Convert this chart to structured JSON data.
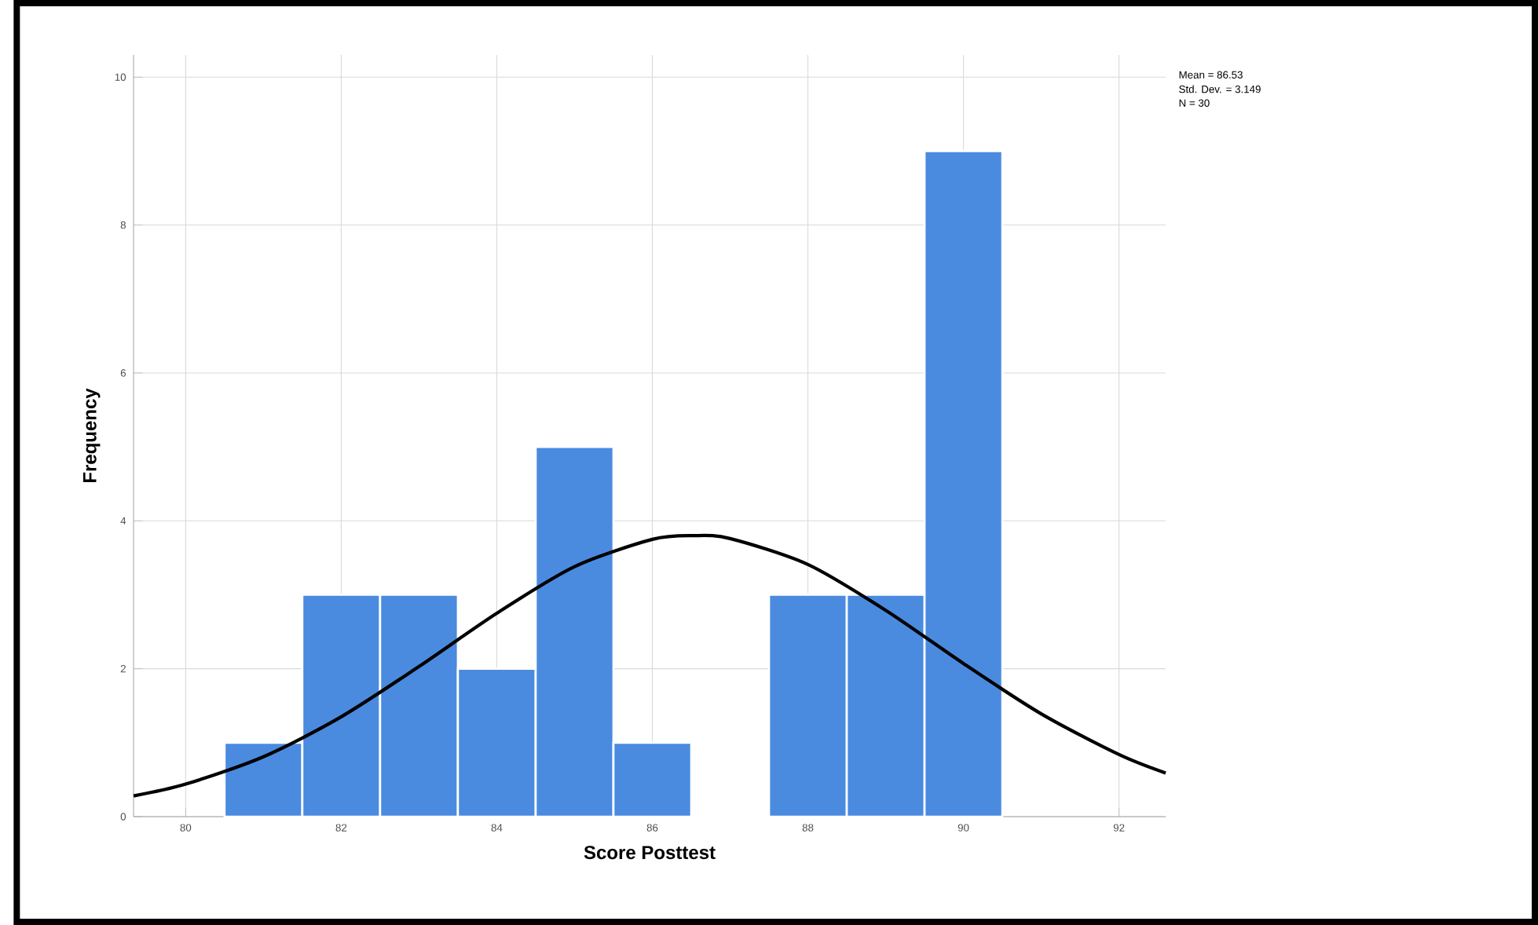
{
  "chart_data": {
    "type": "histogram",
    "xlabel": "Score Posttest",
    "ylabel": "Frequency",
    "series": [
      {
        "color": "#4a8be0",
        "bins": [
          80.5,
          81.5,
          82.5,
          83.5,
          84.5,
          85.5,
          86.5,
          87.5,
          88.5,
          89.5,
          90.5
        ],
        "values": [
          1,
          3,
          3,
          2,
          5,
          1,
          0,
          3,
          3,
          9
        ]
      },
      {
        "type": "line",
        "color": "#000000",
        "x": [
          79.33,
          80,
          81,
          82,
          83,
          84,
          85,
          86,
          86.53,
          87,
          88,
          89,
          90,
          91,
          92,
          92.6
        ],
        "values": [
          0.28,
          0.44,
          0.81,
          1.35,
          2.03,
          2.75,
          3.38,
          3.75,
          3.8,
          3.76,
          3.41,
          2.79,
          2.07,
          1.39,
          0.84,
          0.59
        ]
      }
    ],
    "xlim": [
      79.33,
      92.6
    ],
    "ylim": [
      0,
      10.3
    ],
    "xticks": [
      80,
      82,
      84,
      86,
      88,
      90,
      92
    ],
    "yticks": [
      0,
      2,
      4,
      6,
      8,
      10
    ],
    "grid": true,
    "marker": "none",
    "line_style": "solid",
    "annotations": [
      "Mean = 86.53",
      "Std. Dev. = 3.149",
      "N = 30"
    ]
  }
}
